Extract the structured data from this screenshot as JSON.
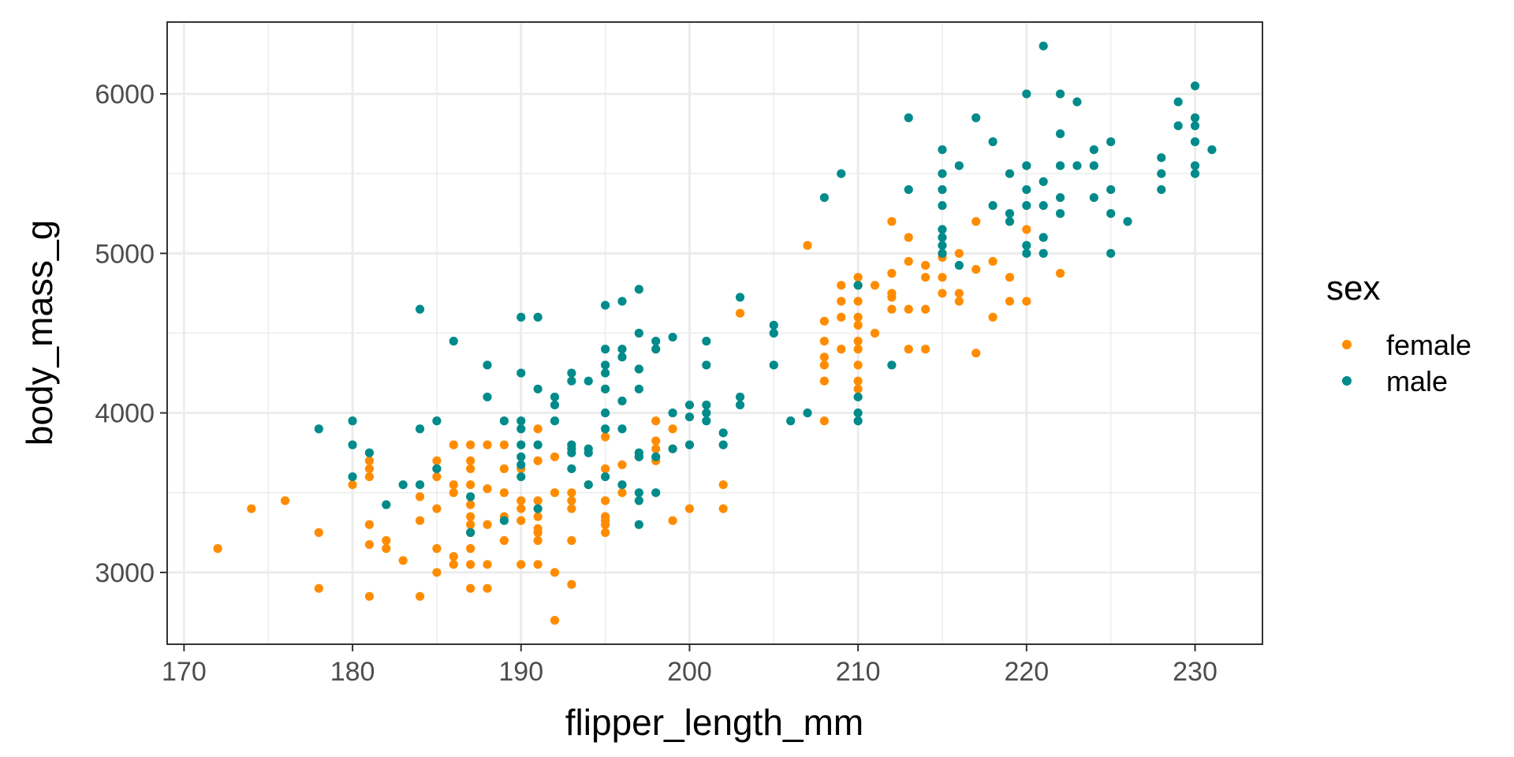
{
  "chart_data": {
    "type": "scatter",
    "title": "",
    "xlabel": "flipper_length_mm",
    "ylabel": "body_mass_g",
    "xlim": [
      169,
      234
    ],
    "ylim": [
      2550,
      6450
    ],
    "x_ticks": [
      170,
      180,
      190,
      200,
      210,
      220,
      230
    ],
    "y_ticks": [
      3000,
      4000,
      5000,
      6000
    ],
    "x_tick_labels": [
      "170",
      "180",
      "190",
      "200",
      "210",
      "220",
      "230"
    ],
    "y_tick_labels": [
      "3000",
      "4000",
      "5000",
      "6000"
    ],
    "grid": true,
    "legend": {
      "title": "sex",
      "position": "right"
    },
    "series": [
      {
        "name": "female",
        "color": "#FF8C00",
        "points": [
          [
            172,
            3150
          ],
          [
            174,
            3400
          ],
          [
            176,
            3450
          ],
          [
            178,
            3250
          ],
          [
            178,
            2900
          ],
          [
            180,
            3550
          ],
          [
            181,
            3600
          ],
          [
            181,
            3650
          ],
          [
            181,
            3700
          ],
          [
            181,
            3300
          ],
          [
            181,
            3175
          ],
          [
            181,
            2850
          ],
          [
            182,
            3150
          ],
          [
            182,
            3200
          ],
          [
            183,
            3075
          ],
          [
            184,
            3475
          ],
          [
            184,
            3325
          ],
          [
            184,
            2850
          ],
          [
            185,
            3700
          ],
          [
            185,
            3650
          ],
          [
            185,
            3600
          ],
          [
            185,
            3400
          ],
          [
            185,
            3150
          ],
          [
            185,
            3000
          ],
          [
            186,
            3800
          ],
          [
            186,
            3550
          ],
          [
            186,
            3500
          ],
          [
            186,
            3100
          ],
          [
            186,
            3050
          ],
          [
            187,
            3800
          ],
          [
            187,
            3700
          ],
          [
            187,
            3650
          ],
          [
            187,
            3550
          ],
          [
            187,
            3425
          ],
          [
            187,
            3350
          ],
          [
            187,
            3300
          ],
          [
            187,
            3250
          ],
          [
            187,
            3150
          ],
          [
            187,
            3050
          ],
          [
            187,
            2900
          ],
          [
            188,
            3800
          ],
          [
            188,
            3525
          ],
          [
            188,
            3300
          ],
          [
            188,
            3050
          ],
          [
            188,
            2900
          ],
          [
            189,
            3800
          ],
          [
            189,
            3650
          ],
          [
            189,
            3500
          ],
          [
            189,
            3350
          ],
          [
            189,
            3200
          ],
          [
            190,
            3650
          ],
          [
            190,
            3450
          ],
          [
            190,
            3400
          ],
          [
            190,
            3325
          ],
          [
            190,
            3050
          ],
          [
            191,
            3900
          ],
          [
            191,
            3700
          ],
          [
            191,
            3450
          ],
          [
            191,
            3350
          ],
          [
            191,
            3275
          ],
          [
            191,
            3250
          ],
          [
            191,
            3200
          ],
          [
            191,
            3050
          ],
          [
            192,
            3725
          ],
          [
            192,
            3500
          ],
          [
            192,
            3000
          ],
          [
            192,
            2700
          ],
          [
            193,
            3500
          ],
          [
            193,
            3450
          ],
          [
            193,
            3400
          ],
          [
            193,
            3200
          ],
          [
            193,
            2925
          ],
          [
            194,
            3550
          ],
          [
            195,
            4150
          ],
          [
            195,
            3850
          ],
          [
            195,
            3650
          ],
          [
            195,
            3450
          ],
          [
            195,
            3350
          ],
          [
            195,
            3325
          ],
          [
            195,
            3300
          ],
          [
            195,
            3250
          ],
          [
            196,
            3675
          ],
          [
            196,
            3500
          ],
          [
            197,
            3725
          ],
          [
            198,
            3950
          ],
          [
            198,
            3825
          ],
          [
            198,
            3775
          ],
          [
            198,
            3700
          ],
          [
            199,
            3900
          ],
          [
            199,
            3775
          ],
          [
            199,
            3325
          ],
          [
            200,
            3400
          ],
          [
            202,
            3550
          ],
          [
            202,
            3400
          ],
          [
            203,
            4625
          ],
          [
            207,
            5050
          ],
          [
            208,
            4575
          ],
          [
            208,
            4450
          ],
          [
            208,
            4350
          ],
          [
            208,
            4300
          ],
          [
            208,
            4200
          ],
          [
            208,
            3950
          ],
          [
            209,
            4800
          ],
          [
            209,
            4700
          ],
          [
            209,
            4600
          ],
          [
            209,
            4400
          ],
          [
            210,
            4850
          ],
          [
            210,
            4800
          ],
          [
            210,
            4700
          ],
          [
            210,
            4600
          ],
          [
            210,
            4550
          ],
          [
            210,
            4450
          ],
          [
            210,
            4400
          ],
          [
            210,
            4300
          ],
          [
            210,
            4200
          ],
          [
            210,
            4150
          ],
          [
            211,
            4800
          ],
          [
            211,
            4500
          ],
          [
            212,
            5200
          ],
          [
            212,
            4875
          ],
          [
            212,
            4750
          ],
          [
            212,
            4725
          ],
          [
            212,
            4650
          ],
          [
            213,
            5100
          ],
          [
            213,
            4950
          ],
          [
            213,
            4650
          ],
          [
            213,
            4400
          ],
          [
            214,
            4925
          ],
          [
            214,
            4850
          ],
          [
            214,
            4650
          ],
          [
            214,
            4400
          ],
          [
            215,
            5000
          ],
          [
            215,
            4975
          ],
          [
            215,
            4850
          ],
          [
            215,
            4750
          ],
          [
            216,
            5000
          ],
          [
            216,
            4750
          ],
          [
            216,
            4700
          ],
          [
            217,
            5200
          ],
          [
            217,
            4900
          ],
          [
            217,
            4375
          ],
          [
            218,
            4950
          ],
          [
            218,
            4600
          ],
          [
            219,
            4850
          ],
          [
            219,
            4700
          ],
          [
            220,
            5150
          ],
          [
            220,
            4700
          ],
          [
            222,
            4875
          ]
        ]
      },
      {
        "name": "male",
        "color": "#008B8B",
        "points": [
          [
            178,
            3900
          ],
          [
            180,
            3950
          ],
          [
            180,
            3800
          ],
          [
            180,
            3600
          ],
          [
            181,
            3750
          ],
          [
            182,
            3425
          ],
          [
            183,
            3550
          ],
          [
            184,
            4650
          ],
          [
            184,
            3900
          ],
          [
            184,
            3550
          ],
          [
            185,
            3950
          ],
          [
            185,
            3650
          ],
          [
            186,
            4450
          ],
          [
            187,
            3475
          ],
          [
            187,
            3250
          ],
          [
            188,
            4300
          ],
          [
            188,
            4100
          ],
          [
            189,
            3950
          ],
          [
            189,
            3325
          ],
          [
            190,
            4600
          ],
          [
            190,
            4250
          ],
          [
            190,
            3950
          ],
          [
            190,
            3900
          ],
          [
            190,
            3800
          ],
          [
            190,
            3725
          ],
          [
            190,
            3675
          ],
          [
            190,
            3600
          ],
          [
            191,
            4600
          ],
          [
            191,
            4150
          ],
          [
            191,
            3800
          ],
          [
            191,
            3400
          ],
          [
            192,
            4100
          ],
          [
            192,
            4050
          ],
          [
            192,
            3950
          ],
          [
            193,
            4250
          ],
          [
            193,
            4200
          ],
          [
            193,
            3800
          ],
          [
            193,
            3775
          ],
          [
            193,
            3750
          ],
          [
            193,
            3650
          ],
          [
            194,
            4200
          ],
          [
            194,
            3775
          ],
          [
            194,
            3750
          ],
          [
            194,
            3550
          ],
          [
            195,
            4675
          ],
          [
            195,
            4400
          ],
          [
            195,
            4300
          ],
          [
            195,
            4250
          ],
          [
            195,
            4150
          ],
          [
            195,
            4000
          ],
          [
            195,
            3900
          ],
          [
            195,
            3600
          ],
          [
            196,
            4700
          ],
          [
            196,
            4400
          ],
          [
            196,
            4350
          ],
          [
            196,
            4075
          ],
          [
            196,
            3900
          ],
          [
            196,
            3550
          ],
          [
            197,
            4775
          ],
          [
            197,
            4500
          ],
          [
            197,
            4275
          ],
          [
            197,
            4150
          ],
          [
            197,
            3750
          ],
          [
            197,
            3725
          ],
          [
            197,
            3500
          ],
          [
            197,
            3450
          ],
          [
            197,
            3300
          ],
          [
            198,
            4450
          ],
          [
            198,
            4400
          ],
          [
            198,
            3725
          ],
          [
            198,
            3500
          ],
          [
            199,
            4475
          ],
          [
            199,
            4000
          ],
          [
            199,
            3775
          ],
          [
            200,
            4050
          ],
          [
            200,
            3975
          ],
          [
            200,
            3800
          ],
          [
            201,
            4450
          ],
          [
            201,
            4300
          ],
          [
            201,
            4050
          ],
          [
            201,
            4000
          ],
          [
            201,
            3950
          ],
          [
            202,
            3875
          ],
          [
            202,
            3800
          ],
          [
            203,
            4725
          ],
          [
            203,
            4100
          ],
          [
            203,
            4050
          ],
          [
            205,
            4550
          ],
          [
            205,
            4500
          ],
          [
            205,
            4300
          ],
          [
            206,
            3950
          ],
          [
            207,
            4000
          ],
          [
            208,
            5350
          ],
          [
            209,
            5500
          ],
          [
            210,
            4800
          ],
          [
            210,
            4100
          ],
          [
            210,
            4000
          ],
          [
            210,
            3950
          ],
          [
            212,
            4300
          ],
          [
            213,
            5850
          ],
          [
            213,
            5400
          ],
          [
            215,
            5650
          ],
          [
            215,
            5500
          ],
          [
            215,
            5400
          ],
          [
            215,
            5300
          ],
          [
            215,
            5150
          ],
          [
            215,
            5100
          ],
          [
            215,
            5050
          ],
          [
            215,
            5000
          ],
          [
            216,
            5550
          ],
          [
            216,
            4925
          ],
          [
            217,
            5850
          ],
          [
            218,
            5700
          ],
          [
            218,
            5300
          ],
          [
            219,
            5500
          ],
          [
            219,
            5250
          ],
          [
            219,
            5200
          ],
          [
            220,
            6000
          ],
          [
            220,
            5550
          ],
          [
            220,
            5400
          ],
          [
            220,
            5300
          ],
          [
            220,
            5050
          ],
          [
            220,
            5000
          ],
          [
            221,
            6300
          ],
          [
            221,
            5450
          ],
          [
            221,
            5300
          ],
          [
            221,
            5100
          ],
          [
            221,
            5000
          ],
          [
            222,
            6000
          ],
          [
            222,
            5750
          ],
          [
            222,
            5550
          ],
          [
            222,
            5350
          ],
          [
            222,
            5250
          ],
          [
            223,
            5950
          ],
          [
            223,
            5550
          ],
          [
            224,
            5650
          ],
          [
            224,
            5550
          ],
          [
            224,
            5350
          ],
          [
            225,
            5700
          ],
          [
            225,
            5400
          ],
          [
            225,
            5250
          ],
          [
            225,
            5000
          ],
          [
            226,
            5200
          ],
          [
            228,
            5600
          ],
          [
            228,
            5500
          ],
          [
            228,
            5400
          ],
          [
            229,
            5950
          ],
          [
            229,
            5800
          ],
          [
            230,
            6050
          ],
          [
            230,
            5850
          ],
          [
            230,
            5800
          ],
          [
            230,
            5700
          ],
          [
            230,
            5550
          ],
          [
            230,
            5500
          ],
          [
            231,
            5650
          ]
        ]
      }
    ]
  }
}
